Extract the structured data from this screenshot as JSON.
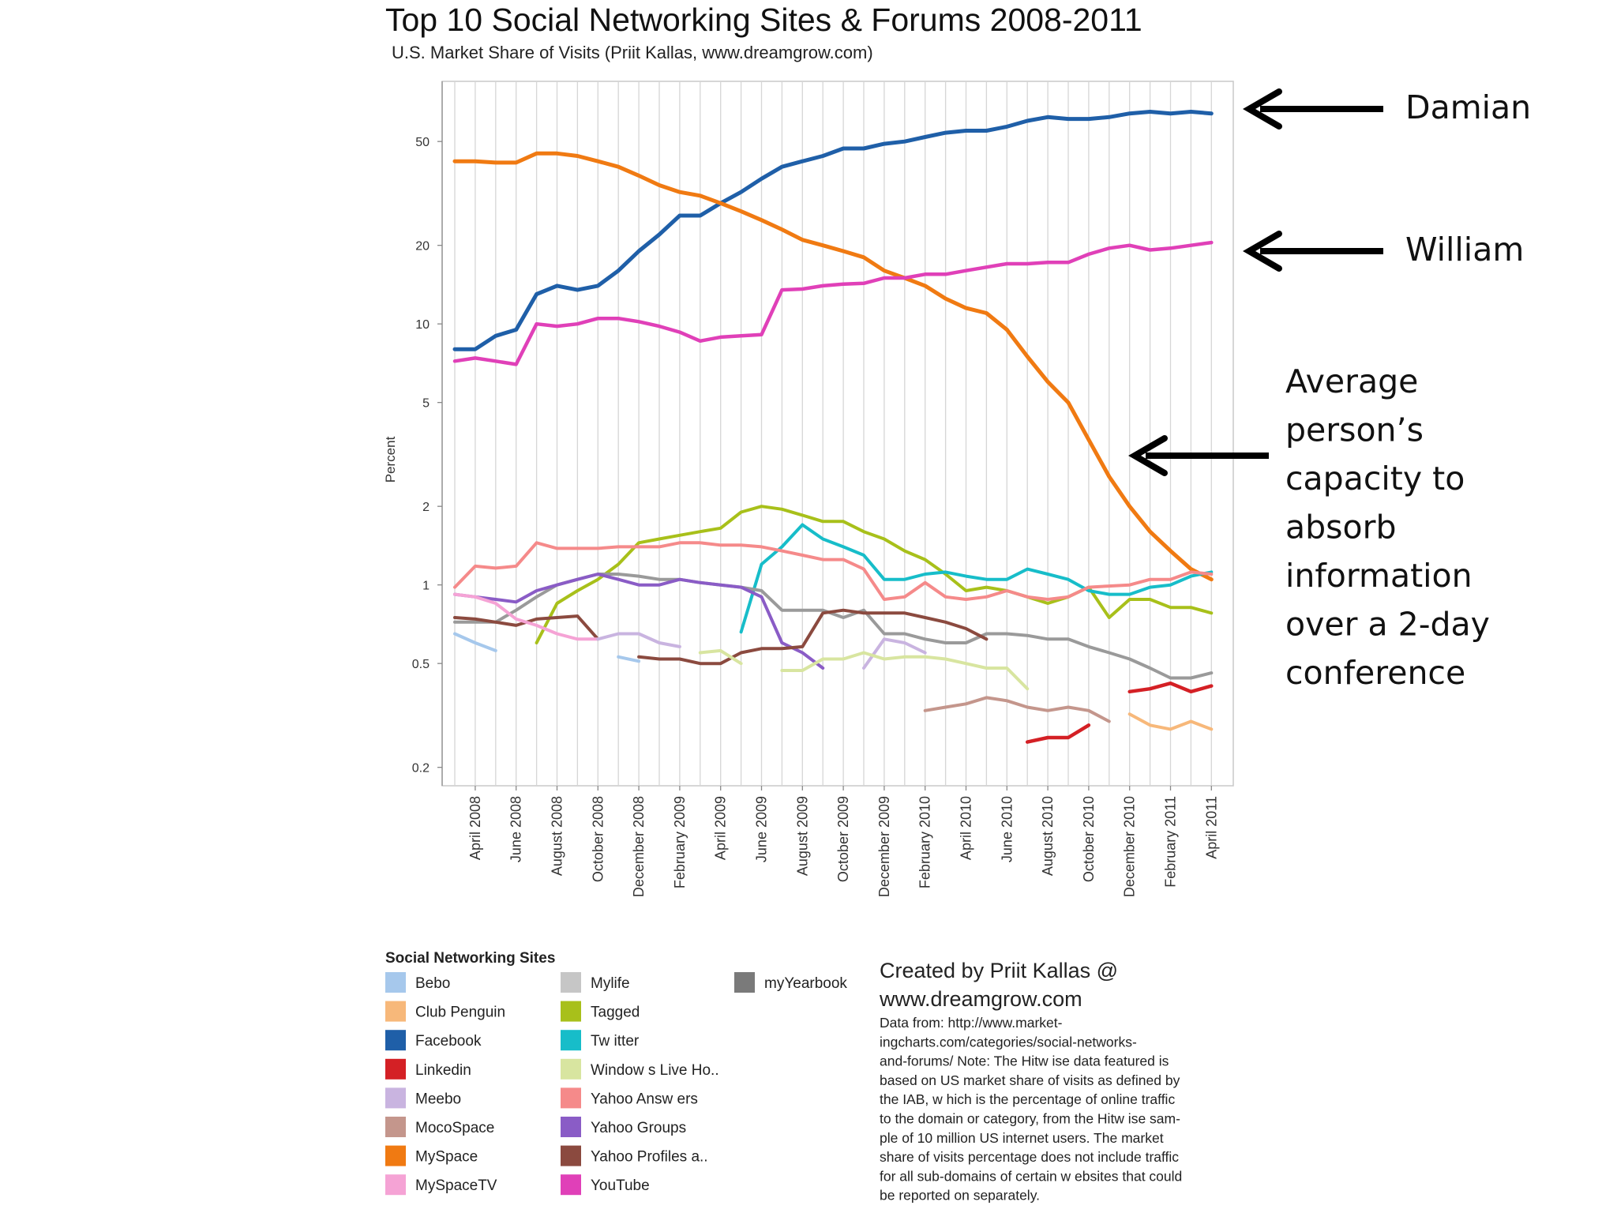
{
  "chart_data": {
    "type": "line",
    "title": "Top 10 Social Networking Sites & Forums 2008-2011",
    "subtitle": "U.S. Market Share of Visits (Priit Kallas, www.dreamgrow.com)",
    "ylabel": "Percent",
    "xlabel": "",
    "yscale": "log",
    "ylim": [
      0.17,
      85
    ],
    "yticks": [
      {
        "value": 50,
        "label": "50"
      },
      {
        "value": 20,
        "label": "20"
      },
      {
        "value": 10,
        "label": "10"
      },
      {
        "value": 5,
        "label": "5"
      },
      {
        "value": 2,
        "label": "2"
      },
      {
        "value": 1,
        "label": "1"
      },
      {
        "value": 0.5,
        "label": "0.5"
      },
      {
        "value": 0.2,
        "label": "0.2"
      }
    ],
    "x_count": 38,
    "x_tick_labels": [
      {
        "index": 1,
        "label": "April 2008"
      },
      {
        "index": 3,
        "label": "June 2008"
      },
      {
        "index": 5,
        "label": "August 2008"
      },
      {
        "index": 7,
        "label": "October 2008"
      },
      {
        "index": 9,
        "label": "December 2008"
      },
      {
        "index": 11,
        "label": "February 2009"
      },
      {
        "index": 13,
        "label": "April 2009"
      },
      {
        "index": 15,
        "label": "June 2009"
      },
      {
        "index": 17,
        "label": "August 2009"
      },
      {
        "index": 19,
        "label": "October 2009"
      },
      {
        "index": 21,
        "label": "December 2009"
      },
      {
        "index": 23,
        "label": "February 2010"
      },
      {
        "index": 25,
        "label": "April 2010"
      },
      {
        "index": 27,
        "label": "June 2010"
      },
      {
        "index": 29,
        "label": "August 2010"
      },
      {
        "index": 31,
        "label": "October 2010"
      },
      {
        "index": 33,
        "label": "December 2010"
      },
      {
        "index": 35,
        "label": "February 2011"
      },
      {
        "index": 37,
        "label": "April 2011"
      }
    ],
    "series": [
      {
        "name": "Facebook",
        "color": "#1f5fa8",
        "width": 5,
        "values": [
          8,
          8,
          9,
          9.5,
          13,
          14,
          13.5,
          14,
          16,
          19,
          22,
          26,
          26,
          29,
          32,
          36,
          40,
          42,
          44,
          47,
          47,
          49,
          50,
          52,
          54,
          55,
          55,
          57,
          60,
          62,
          61,
          61,
          62,
          64,
          65,
          64,
          65,
          64
        ]
      },
      {
        "name": "MySpace",
        "color": "#f07a12",
        "width": 5,
        "values": [
          42,
          42,
          41.5,
          41.5,
          45,
          45,
          44,
          42,
          40,
          37,
          34,
          32,
          31,
          29,
          27,
          25,
          23,
          21,
          20,
          19,
          18,
          16,
          15,
          14,
          12.5,
          11.5,
          11,
          9.5,
          7.5,
          6,
          5,
          3.6,
          2.6,
          2,
          1.6,
          1.35,
          1.15,
          1.05
        ]
      },
      {
        "name": "YouTube",
        "color": "#e040b8",
        "width": 4.5,
        "values": [
          7.2,
          7.4,
          7.2,
          7,
          10,
          9.8,
          10,
          10.5,
          10.5,
          10.2,
          9.8,
          9.3,
          8.6,
          8.9,
          9,
          9.1,
          13.5,
          13.6,
          14,
          14.2,
          14.3,
          15,
          15,
          15.5,
          15.5,
          16,
          16.5,
          17,
          17,
          17.2,
          17.2,
          18.5,
          19.5,
          20,
          19.2,
          19.5,
          20,
          20.5
        ]
      },
      {
        "name": "Tagged",
        "color": "#a8c01a",
        "width": 4,
        "values": [
          null,
          null,
          null,
          null,
          0.6,
          0.85,
          0.95,
          1.05,
          1.2,
          1.45,
          1.5,
          1.55,
          1.6,
          1.65,
          1.9,
          2.0,
          1.95,
          1.85,
          1.75,
          1.75,
          1.6,
          1.5,
          1.35,
          1.25,
          1.1,
          0.95,
          0.98,
          0.95,
          0.9,
          0.85,
          0.9,
          0.98,
          0.75,
          0.88,
          0.88,
          0.82,
          0.82,
          0.78
        ]
      },
      {
        "name": "Twitter",
        "color": "#17bdc9",
        "width": 4,
        "values": [
          null,
          null,
          null,
          null,
          null,
          null,
          null,
          null,
          null,
          null,
          null,
          null,
          null,
          null,
          0.66,
          1.2,
          1.4,
          1.7,
          1.5,
          1.4,
          1.3,
          1.05,
          1.05,
          1.1,
          1.12,
          1.08,
          1.05,
          1.05,
          1.15,
          1.1,
          1.05,
          0.95,
          0.92,
          0.92,
          0.98,
          1.0,
          1.08,
          1.12
        ]
      },
      {
        "name": "Yahoo Answers",
        "color": "#f58a8a",
        "width": 4,
        "values": [
          0.98,
          1.18,
          1.16,
          1.18,
          1.45,
          1.38,
          1.38,
          1.38,
          1.4,
          1.4,
          1.4,
          1.45,
          1.45,
          1.42,
          1.42,
          1.4,
          1.35,
          1.3,
          1.25,
          1.25,
          1.15,
          0.88,
          0.9,
          1.02,
          0.9,
          0.88,
          0.9,
          0.95,
          0.9,
          0.88,
          0.9,
          0.98,
          0.99,
          1.0,
          1.05,
          1.05,
          1.12,
          1.1
        ]
      },
      {
        "name": "Mylife",
        "color": "#9a9a9a",
        "width": 4,
        "values": [
          0.72,
          0.72,
          0.72,
          0.8,
          0.9,
          1.0,
          1.05,
          1.1,
          1.1,
          1.08,
          1.05,
          1.05,
          1.02,
          1.0,
          0.98,
          0.95,
          0.8,
          0.8,
          0.8,
          0.75,
          0.8,
          0.65,
          0.65,
          0.62,
          0.6,
          0.6,
          0.65,
          0.65,
          0.64,
          0.62,
          0.62,
          0.58,
          0.55,
          0.52,
          0.48,
          0.44,
          0.44,
          0.46
        ]
      },
      {
        "name": "Yahoo Groups",
        "color": "#8a5cc6",
        "width": 4,
        "values": [
          0.92,
          0.9,
          0.88,
          0.86,
          0.95,
          1.0,
          1.05,
          1.1,
          1.05,
          1.0,
          1.0,
          1.05,
          1.02,
          1.0,
          0.98,
          0.9,
          0.6,
          0.55,
          0.48,
          null,
          null,
          null,
          null,
          null,
          null,
          null,
          null,
          null,
          null,
          null,
          null,
          null,
          null,
          null,
          null,
          null,
          null,
          null
        ]
      },
      {
        "name": "Yahoo Profiles a..",
        "color": "#8b4a3f",
        "width": 4,
        "values": [
          0.75,
          0.74,
          0.72,
          0.7,
          0.74,
          0.75,
          0.76,
          0.62,
          null,
          0.53,
          0.52,
          0.52,
          0.5,
          0.5,
          0.55,
          0.57,
          0.57,
          0.58,
          0.78,
          0.8,
          0.78,
          0.78,
          0.78,
          0.75,
          0.72,
          0.68,
          0.62,
          null,
          null,
          null,
          null,
          null,
          null,
          null,
          null,
          null,
          null,
          null
        ]
      },
      {
        "name": "MySpaceTV",
        "color": "#f5a3d5",
        "width": 4,
        "values": [
          0.92,
          0.9,
          0.85,
          0.74,
          0.7,
          0.65,
          0.62,
          0.62,
          null,
          null,
          null,
          null,
          null,
          null,
          null,
          null,
          null,
          null,
          null,
          null,
          null,
          null,
          null,
          null,
          null,
          null,
          null,
          null,
          null,
          null,
          null,
          null,
          null,
          null,
          null,
          null,
          null,
          null
        ]
      },
      {
        "name": "Meebo",
        "color": "#c9b4e0",
        "width": 4,
        "values": [
          null,
          null,
          null,
          null,
          null,
          null,
          null,
          0.62,
          0.65,
          0.65,
          0.6,
          0.58,
          null,
          null,
          null,
          null,
          null,
          null,
          null,
          null,
          0.48,
          0.62,
          0.6,
          0.55,
          null,
          null,
          null,
          null,
          null,
          null,
          null,
          null,
          null,
          null,
          null,
          null,
          null,
          null
        ]
      },
      {
        "name": "Windows Live Ho..",
        "color": "#d8e5a0",
        "width": 4,
        "values": [
          null,
          null,
          null,
          null,
          null,
          null,
          null,
          null,
          null,
          null,
          null,
          null,
          0.55,
          0.56,
          0.5,
          null,
          0.47,
          0.47,
          0.52,
          0.52,
          0.55,
          0.52,
          0.53,
          0.53,
          0.52,
          0.5,
          0.48,
          0.48,
          0.4,
          null,
          null,
          null,
          null,
          null,
          null,
          null,
          null,
          null
        ]
      },
      {
        "name": "MocoSpace",
        "color": "#c4968c",
        "width": 4,
        "values": [
          null,
          null,
          null,
          null,
          null,
          null,
          null,
          null,
          null,
          null,
          null,
          null,
          null,
          null,
          null,
          null,
          null,
          null,
          null,
          null,
          null,
          null,
          null,
          0.33,
          0.34,
          0.35,
          0.37,
          0.36,
          0.34,
          0.33,
          0.34,
          0.33,
          0.3,
          null,
          null,
          null,
          null,
          null
        ]
      },
      {
        "name": "Club Penguin",
        "color": "#f7b87a",
        "width": 4,
        "values": [
          null,
          null,
          null,
          null,
          null,
          null,
          null,
          null,
          null,
          null,
          null,
          null,
          null,
          null,
          null,
          null,
          null,
          null,
          null,
          null,
          null,
          null,
          null,
          null,
          null,
          null,
          null,
          null,
          null,
          null,
          null,
          null,
          null,
          0.32,
          0.29,
          0.28,
          0.3,
          0.28
        ]
      },
      {
        "name": "Linkedin",
        "color": "#d42025",
        "width": 4.5,
        "values": [
          null,
          null,
          null,
          null,
          null,
          null,
          null,
          null,
          null,
          null,
          null,
          null,
          null,
          null,
          null,
          null,
          null,
          null,
          null,
          null,
          null,
          null,
          null,
          null,
          null,
          null,
          null,
          null,
          0.25,
          0.26,
          0.26,
          0.29,
          null,
          0.39,
          0.4,
          0.42,
          0.39,
          0.41
        ]
      },
      {
        "name": "Bebo",
        "color": "#a6c8ec",
        "width": 4,
        "values": [
          0.65,
          0.6,
          0.56,
          null,
          null,
          null,
          null,
          null,
          0.53,
          0.51,
          null,
          null,
          null,
          null,
          null,
          null,
          null,
          null,
          null,
          null,
          null,
          null,
          null,
          null,
          null,
          null,
          null,
          null,
          null,
          null,
          null,
          null,
          null,
          null,
          null,
          null,
          null,
          null
        ]
      },
      {
        "name": "myYearbook",
        "color": "#7a7a7a",
        "width": 4,
        "values": [
          null,
          null,
          null,
          null,
          null,
          null,
          null,
          null,
          null,
          null,
          null,
          null,
          null,
          null,
          null,
          null,
          null,
          null,
          null,
          null,
          null,
          null,
          null,
          null,
          null,
          null,
          null,
          null,
          null,
          null,
          null,
          null,
          null,
          null,
          null,
          null,
          null,
          null
        ]
      }
    ],
    "annotations": [
      {
        "id": "damian",
        "lines": [
          "Damian"
        ],
        "points_to": "Facebook"
      },
      {
        "id": "william",
        "lines": [
          "William"
        ],
        "points_to": "YouTube"
      },
      {
        "id": "average",
        "lines": [
          "Average",
          "person’s",
          "capacity to",
          "absorb",
          "information",
          "over a 2-day",
          "conference"
        ],
        "points_to": "MySpace"
      }
    ]
  },
  "legend": {
    "title": "Social Networking Sites",
    "col1": [
      {
        "label": "Bebo",
        "color": "#a6c8ec"
      },
      {
        "label": "Club Penguin",
        "color": "#f7b87a"
      },
      {
        "label": "Facebook",
        "color": "#1f5fa8"
      },
      {
        "label": "Linkedin",
        "color": "#d42025"
      },
      {
        "label": "Meebo",
        "color": "#c9b4e0"
      },
      {
        "label": "MocoSpace",
        "color": "#c4968c"
      },
      {
        "label": "MySpace",
        "color": "#f07a12"
      },
      {
        "label": "MySpaceTV",
        "color": "#f5a3d5"
      }
    ],
    "col2": [
      {
        "label": "Mylife",
        "color": "#c6c6c6"
      },
      {
        "label": "Tagged",
        "color": "#a8c01a"
      },
      {
        "label": "Tw itter",
        "color": "#17bdc9"
      },
      {
        "label": "Window s Live Ho..",
        "color": "#d8e5a0"
      },
      {
        "label": "Yahoo Answ ers",
        "color": "#f58a8a"
      },
      {
        "label": "Yahoo Groups",
        "color": "#8a5cc6"
      },
      {
        "label": "Yahoo Profiles a..",
        "color": "#8b4a3f"
      },
      {
        "label": "YouTube",
        "color": "#e040b8"
      }
    ],
    "col3": [
      {
        "label": "myYearbook",
        "color": "#7a7a7a"
      }
    ]
  },
  "credit": {
    "line1": "Created by Priit Kallas @",
    "line2": "www.dreamgrow.com",
    "note_lines": [
      "Data from: http://www.market-",
      "ingcharts.com/categories/social-networks-",
      "and-forums/  Note: The Hitw ise data featured is",
      "based on US market share of visits as defined by",
      "the IAB, w hich is the percentage of online traffic",
      "to the domain or category, from the Hitw ise sam-",
      "ple of 10 million US internet users. The market",
      "share of visits percentage does not include traffic",
      "for all sub-domains of certain w ebsites that could",
      "be reported on separately."
    ]
  }
}
